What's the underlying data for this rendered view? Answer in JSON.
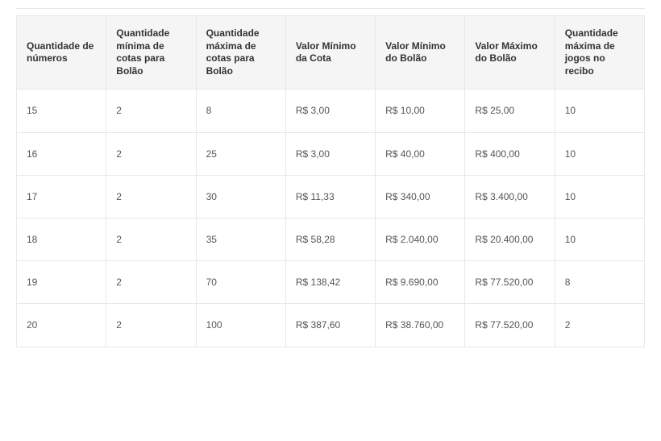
{
  "table": {
    "columns": [
      "Quantidade de números",
      "Quantidade mínima de cotas para Bolão",
      "Quantidade máxima de cotas para Bolão",
      "Valor Mínimo da Cota",
      "Valor Mínimo do Bolão",
      "Valor Máximo do Bolão",
      "Quantidade máxima de jogos no recibo"
    ],
    "rows": [
      [
        "15",
        "2",
        "8",
        "R$ 3,00",
        "R$ 10,00",
        "R$ 25,00",
        "10"
      ],
      [
        "16",
        "2",
        "25",
        "R$ 3,00",
        "R$ 40,00",
        "R$ 400,00",
        "10"
      ],
      [
        "17",
        "2",
        "30",
        "R$ 11,33",
        "R$ 340,00",
        "R$ 3.400,00",
        "10"
      ],
      [
        "18",
        "2",
        "35",
        "R$ 58,28",
        "R$ 2.040,00",
        "R$ 20.400,00",
        "10"
      ],
      [
        "19",
        "2",
        "70",
        "R$ 138,42",
        "R$ 9.690,00",
        "R$ 77.520,00",
        "8"
      ],
      [
        "20",
        "2",
        "100",
        "R$ 387,60",
        "R$ 38.760,00",
        "R$ 77.520,00",
        "2"
      ]
    ],
    "header_bg": "#f5f5f5",
    "border_color": "#e8e8e8",
    "header_font_size": 12,
    "cell_font_size": 12,
    "header_text_color": "#333333",
    "cell_text_color": "#555555"
  }
}
